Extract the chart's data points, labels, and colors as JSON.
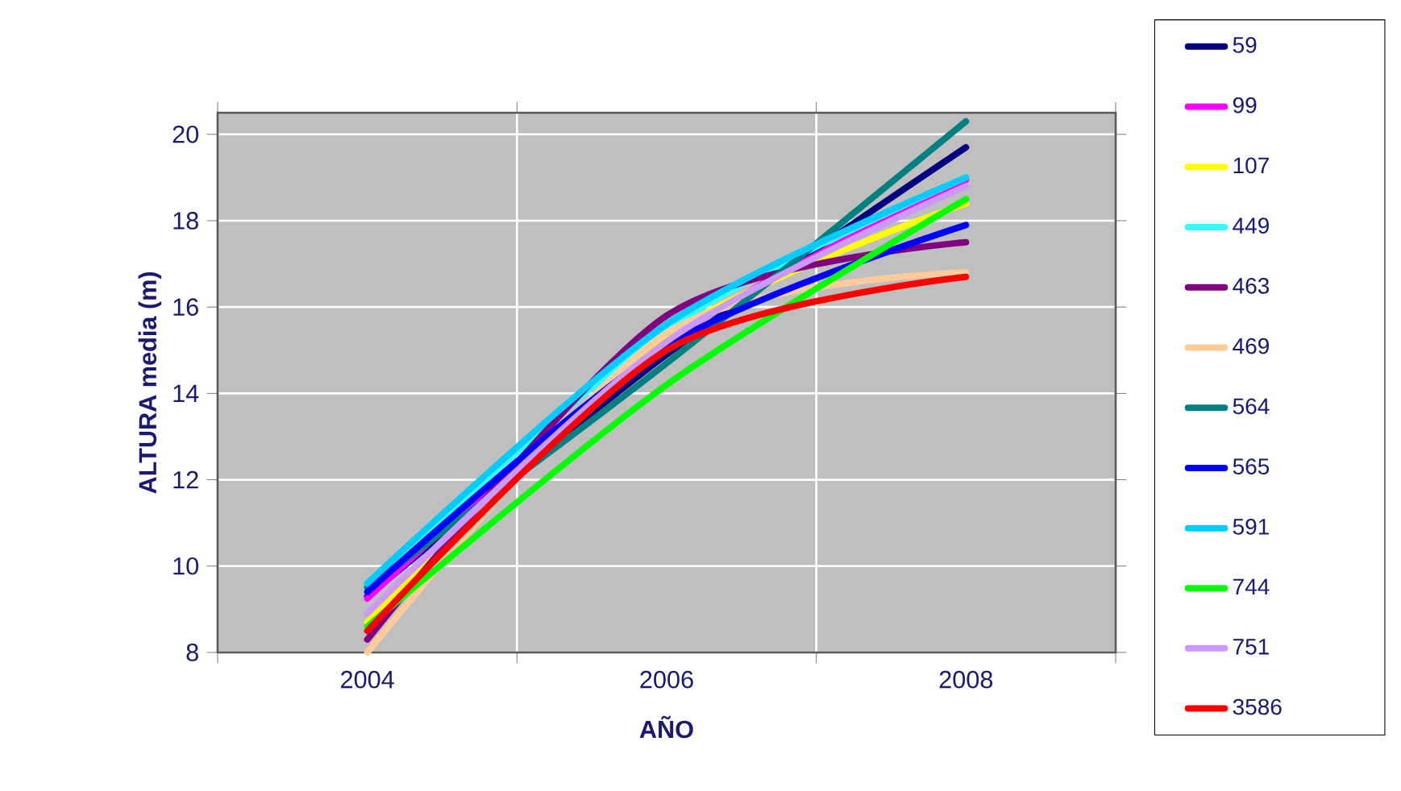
{
  "chart_data": {
    "type": "line",
    "xlabel": "AÑO",
    "ylabel": "ALTURA media (m)",
    "categories": [
      "2004",
      "2006",
      "2008"
    ],
    "ylim": [
      8,
      20.5
    ],
    "yticks": [
      8,
      10,
      12,
      14,
      16,
      18,
      20
    ],
    "grid": true,
    "legend": "right",
    "marker": "none",
    "line_style": "solid",
    "series": [
      {
        "name": "59",
        "color": "#000080",
        "values": [
          9.3,
          14.9,
          19.7
        ]
      },
      {
        "name": "99",
        "color": "#ff00ff",
        "values": [
          9.25,
          15.2,
          18.95
        ]
      },
      {
        "name": "107",
        "color": "#ffff00",
        "values": [
          8.7,
          15.3,
          18.4
        ]
      },
      {
        "name": "449",
        "color": "#33ffff",
        "values": [
          9.5,
          15.5,
          19.0
        ]
      },
      {
        "name": "463",
        "color": "#800080",
        "values": [
          8.3,
          15.8,
          17.5
        ]
      },
      {
        "name": "469",
        "color": "#ffcc99",
        "values": [
          8.0,
          15.4,
          16.8
        ]
      },
      {
        "name": "564",
        "color": "#008080",
        "values": [
          9.5,
          14.7,
          20.3
        ]
      },
      {
        "name": "565",
        "color": "#0000ff",
        "values": [
          9.4,
          15.1,
          17.9
        ]
      },
      {
        "name": "591",
        "color": "#00ccff",
        "values": [
          9.6,
          15.6,
          19.0
        ]
      },
      {
        "name": "744",
        "color": "#00ff00",
        "values": [
          8.6,
          14.2,
          18.5
        ]
      },
      {
        "name": "751",
        "color": "#cc99ff",
        "values": [
          8.9,
          15.2,
          18.8
        ]
      },
      {
        "name": "3586",
        "color": "#ff0000",
        "values": [
          8.5,
          15.0,
          16.7
        ]
      }
    ]
  }
}
